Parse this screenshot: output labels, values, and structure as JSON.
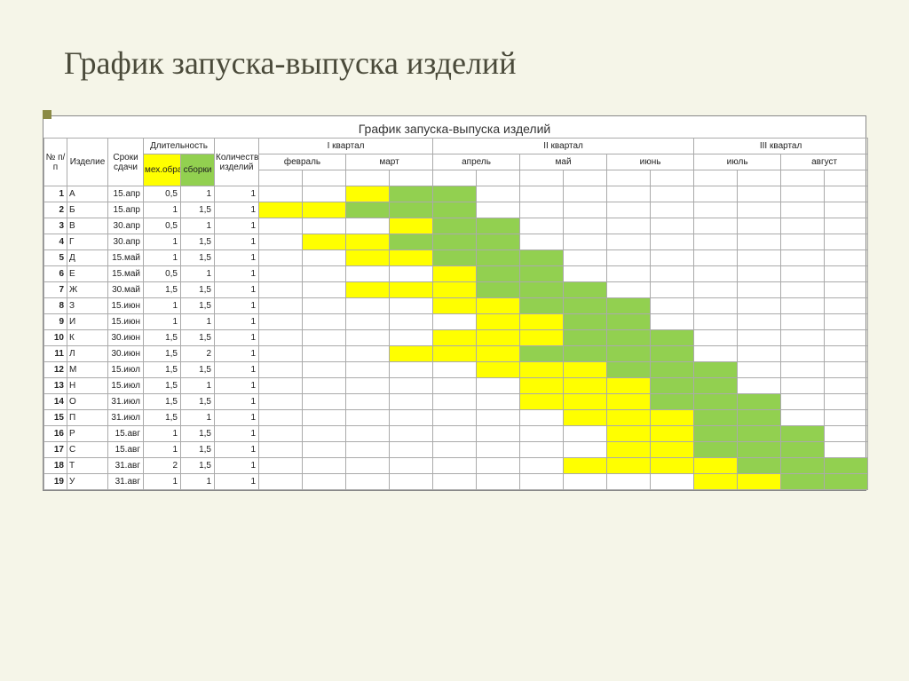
{
  "colors": {
    "slide_bg": "#f5f5e8",
    "title_color": "#4a4a3a",
    "accent": "#8a8a45",
    "mech": "#ffff00",
    "assembly": "#92d050",
    "border": "#aaaaaa",
    "chart_bg": "#ffffff"
  },
  "slide_title": "График запуска-выпуска изделий",
  "chart_title": "График запуска-выпуска изделий",
  "headers": {
    "num": "№ п/п",
    "product": "Изделие",
    "due": "Сроки сдачи",
    "duration": "Длительность",
    "qty": "Количество изделий",
    "mech": "мех.обработки",
    "assembly": "сборки",
    "q1": "I квартал",
    "q2": "II квартал",
    "q3": "III квартал"
  },
  "months": [
    "февраль",
    "март",
    "апрель",
    "май",
    "июнь",
    "июль",
    "август"
  ],
  "half_months_count": 14,
  "col_widths": {
    "num": 26,
    "product": 46,
    "due": 40,
    "mech": 42,
    "asm": 38,
    "qty": 50,
    "half": 49
  },
  "rows": [
    {
      "n": 1,
      "p": "А",
      "d": "15.апр",
      "m": "0,5",
      "a": "1",
      "q": "1",
      "ms": 2,
      "ml": 1,
      "as": 3,
      "al": 2
    },
    {
      "n": 2,
      "p": "Б",
      "d": "15.апр",
      "m": "1",
      "a": "1,5",
      "q": "1",
      "ms": 0,
      "ml": 2,
      "as": 2,
      "al": 3
    },
    {
      "n": 3,
      "p": "В",
      "d": "30.апр",
      "m": "0,5",
      "a": "1",
      "q": "1",
      "ms": 3,
      "ml": 1,
      "as": 4,
      "al": 2
    },
    {
      "n": 4,
      "p": "Г",
      "d": "30.апр",
      "m": "1",
      "a": "1,5",
      "q": "1",
      "ms": 1,
      "ml": 2,
      "as": 3,
      "al": 3
    },
    {
      "n": 5,
      "p": "Д",
      "d": "15.май",
      "m": "1",
      "a": "1,5",
      "q": "1",
      "ms": 2,
      "ml": 2,
      "as": 4,
      "al": 3
    },
    {
      "n": 6,
      "p": "Е",
      "d": "15.май",
      "m": "0,5",
      "a": "1",
      "q": "1",
      "ms": 4,
      "ml": 1,
      "as": 5,
      "al": 2
    },
    {
      "n": 7,
      "p": "Ж",
      "d": "30.май",
      "m": "1,5",
      "a": "1,5",
      "q": "1",
      "ms": 2,
      "ml": 3,
      "as": 5,
      "al": 3
    },
    {
      "n": 8,
      "p": "З",
      "d": "15.июн",
      "m": "1",
      "a": "1,5",
      "q": "1",
      "ms": 4,
      "ml": 2,
      "as": 6,
      "al": 3
    },
    {
      "n": 9,
      "p": "И",
      "d": "15.июн",
      "m": "1",
      "a": "1",
      "q": "1",
      "ms": 5,
      "ml": 2,
      "as": 7,
      "al": 2
    },
    {
      "n": 10,
      "p": "К",
      "d": "30.июн",
      "m": "1,5",
      "a": "1,5",
      "q": "1",
      "ms": 4,
      "ml": 3,
      "as": 7,
      "al": 3
    },
    {
      "n": 11,
      "p": "Л",
      "d": "30.июн",
      "m": "1,5",
      "a": "2",
      "q": "1",
      "ms": 3,
      "ml": 3,
      "as": 6,
      "al": 4
    },
    {
      "n": 12,
      "p": "М",
      "d": "15.июл",
      "m": "1,5",
      "a": "1,5",
      "q": "1",
      "ms": 5,
      "ml": 3,
      "as": 8,
      "al": 3
    },
    {
      "n": 13,
      "p": "Н",
      "d": "15.июл",
      "m": "1,5",
      "a": "1",
      "q": "1",
      "ms": 6,
      "ml": 3,
      "as": 9,
      "al": 2
    },
    {
      "n": 14,
      "p": "О",
      "d": "31.июл",
      "m": "1,5",
      "a": "1,5",
      "q": "1",
      "ms": 6,
      "ml": 3,
      "as": 9,
      "al": 3
    },
    {
      "n": 15,
      "p": "П",
      "d": "31.июл",
      "m": "1,5",
      "a": "1",
      "q": "1",
      "ms": 7,
      "ml": 3,
      "as": 10,
      "al": 2
    },
    {
      "n": 16,
      "p": "Р",
      "d": "15.авг",
      "m": "1",
      "a": "1,5",
      "q": "1",
      "ms": 8,
      "ml": 2,
      "as": 10,
      "al": 3
    },
    {
      "n": 17,
      "p": "С",
      "d": "15.авг",
      "m": "1",
      "a": "1,5",
      "q": "1",
      "ms": 8,
      "ml": 2,
      "as": 10,
      "al": 3
    },
    {
      "n": 18,
      "p": "Т",
      "d": "31.авг",
      "m": "2",
      "a": "1,5",
      "q": "1",
      "ms": 7,
      "ml": 4,
      "as": 11,
      "al": 3
    },
    {
      "n": 19,
      "p": "У",
      "d": "31.авг",
      "m": "1",
      "a": "1",
      "q": "1",
      "ms": 10,
      "ml": 2,
      "as": 12,
      "al": 2
    }
  ]
}
